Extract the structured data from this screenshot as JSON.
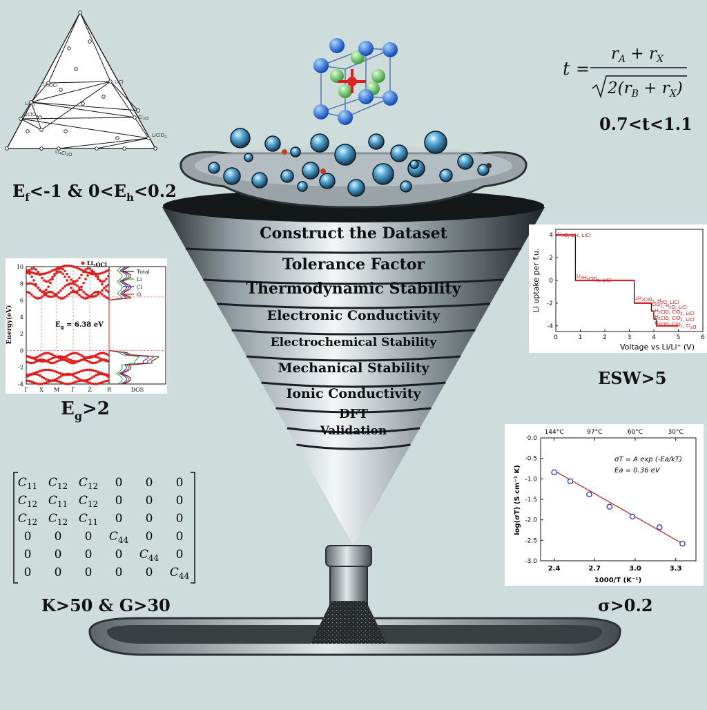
{
  "funnel": {
    "steps": [
      "Construct the Dataset",
      "Tolerance Factor",
      "Thermodynamic Stability",
      "Electronic Conductivity",
      "Electrochemical Stability",
      "Mechanical Stability",
      "Ionic Conductivity",
      "DFT",
      "Validation"
    ]
  },
  "criteria": {
    "thermo": {
      "a": "E",
      "a_sub": "f",
      "b": "<-1 & 0<E",
      "b_sub": "h",
      "c": "<0.2"
    },
    "tolerance": {
      "t": "t",
      "eq": "=",
      "num": "r",
      "num_sub1": "A",
      "plus": " + r",
      "num_sub2": "X",
      "den_a": "2(r",
      "den_sub1": "B",
      "den_b": " + r",
      "den_sub2": "X",
      "den_c": ")",
      "range": "0.7<t<1.1"
    },
    "bandgap": {
      "a": "E",
      "sub": "g",
      "b": ">2"
    },
    "esw": "ESW>5",
    "mech": "K>50 & G>30",
    "ionic": "σ>0.2"
  },
  "phase_diagram": {
    "labels": [
      "Li3OCl",
      "LiCl",
      "Li2O",
      "Cl2O",
      "LiClO4",
      "LiClO3",
      "Li4Cl2O"
    ]
  },
  "band_plot": {
    "title": "Li3OCl",
    "ylabel": "Energy(eV)",
    "yticks": [
      "10",
      "8",
      "6",
      "4",
      "2",
      "0",
      "-2",
      "-4"
    ],
    "kpoints": [
      "Γ",
      "X",
      "M",
      "Γ",
      "Z",
      "R"
    ],
    "dos_label": "DOS",
    "legend": [
      {
        "name": "Total",
        "color": "#222222"
      },
      {
        "name": "Li",
        "color": "#22aa22"
      },
      {
        "name": "Cl",
        "color": "#2222cc"
      },
      {
        "name": "O",
        "color": "#dd2222"
      }
    ],
    "annotation_a": "E",
    "annotation_sub": "g",
    "annotation_b": "= 6.38 eV"
  },
  "esw_plot": {
    "ylabel": "Li uptake per f.u.",
    "xlabel": "Voltage vs Li/Li⁺ (V)",
    "xticks": [
      "0",
      "1",
      "2",
      "3",
      "4",
      "5",
      "6"
    ],
    "yticks": [
      "4",
      "2",
      "0",
      "-2",
      "-4"
    ],
    "annotations": [
      "Li2O, LiH, LiCl",
      "Li4H3ClO3, LiCl",
      "LiH2ClO3, H2O, LiCl",
      "ClO2, H2O, LiCl",
      "H3ClO, ClO2, LiCl",
      "H3ClO, ClO2, LiCl",
      "H3ClO, ClO2, Cl2O"
    ]
  },
  "arrhenius_plot": {
    "top_ticks": [
      "144°C",
      "97°C",
      "60°C",
      "30°C"
    ],
    "xlabel": "1000/T (K⁻¹)",
    "ylabel": "log(σT) (S cm⁻¹ K)",
    "xticks": [
      "2.4",
      "2.7",
      "3.0",
      "3.3"
    ],
    "yticks": [
      "0.0",
      "-0.5",
      "-1.0",
      "-1.5",
      "-2.0",
      "-2.5",
      "-3.0"
    ],
    "equation": "σT = A exp (-Ea/kT)",
    "ea": "Ea = 0.36 eV"
  },
  "chart_data": [
    {
      "type": "scatter",
      "xlabel": "1000/T (K⁻¹)",
      "ylabel": "log(σT) (S cm⁻¹ K)",
      "xlim": [
        2.3,
        3.45
      ],
      "ylim": [
        -3.0,
        0.0
      ],
      "x": [
        2.4,
        2.52,
        2.66,
        2.81,
        2.98,
        3.18,
        3.35
      ],
      "y": [
        -0.84,
        -1.06,
        -1.38,
        -1.68,
        -1.92,
        -2.18,
        -2.58
      ],
      "fit": {
        "x": [
          2.4,
          3.35
        ],
        "y": [
          -0.8,
          -2.58
        ]
      }
    },
    {
      "type": "line",
      "xlabel": "Voltage vs Li/Li⁺ (V)",
      "ylabel": "Li uptake per f.u.",
      "xlim": [
        0,
        6
      ],
      "ylim": [
        -4.5,
        4.5
      ],
      "x": [
        0,
        0.8,
        0.8,
        3.2,
        3.2,
        3.9,
        3.9,
        4.0,
        4.0,
        4.1,
        4.1,
        5.0
      ],
      "y": [
        4,
        4,
        0,
        0,
        -2,
        -2,
        -2.7,
        -2.7,
        -3.4,
        -3.4,
        -4,
        -4
      ]
    }
  ],
  "stiffness_matrix": [
    [
      "C11",
      "C12",
      "C12",
      "0",
      "0",
      "0"
    ],
    [
      "C12",
      "C11",
      "C12",
      "0",
      "0",
      "0"
    ],
    [
      "C12",
      "C12",
      "C11",
      "0",
      "0",
      "0"
    ],
    [
      "0",
      "0",
      "0",
      "C44",
      "0",
      "0"
    ],
    [
      "0",
      "0",
      "0",
      "0",
      "C44",
      "0"
    ],
    [
      "0",
      "0",
      "0",
      "0",
      "0",
      "C44"
    ]
  ]
}
